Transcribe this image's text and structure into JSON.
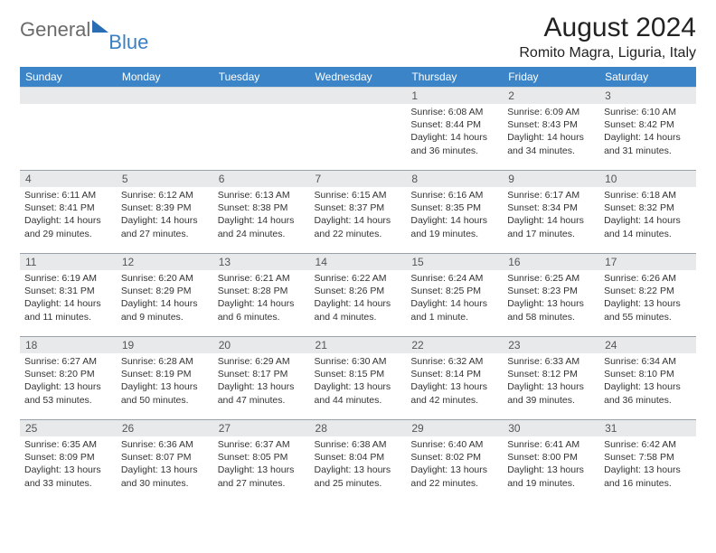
{
  "logo": {
    "text1": "General",
    "text2": "Blue"
  },
  "title": "August 2024",
  "location": "Romito Magra, Liguria, Italy",
  "weekdays": [
    "Sunday",
    "Monday",
    "Tuesday",
    "Wednesday",
    "Thursday",
    "Friday",
    "Saturday"
  ],
  "colors": {
    "header_bg": "#3a84c7",
    "header_text": "#ffffff",
    "daynum_bg": "#e8e9eb",
    "border": "#9aa1a8",
    "logo_gray": "#6b6b6b",
    "logo_blue": "#3a7fc4"
  },
  "weeks": [
    [
      null,
      null,
      null,
      null,
      {
        "day": "1",
        "sunrise": "Sunrise: 6:08 AM",
        "sunset": "Sunset: 8:44 PM",
        "daylight": "Daylight: 14 hours and 36 minutes."
      },
      {
        "day": "2",
        "sunrise": "Sunrise: 6:09 AM",
        "sunset": "Sunset: 8:43 PM",
        "daylight": "Daylight: 14 hours and 34 minutes."
      },
      {
        "day": "3",
        "sunrise": "Sunrise: 6:10 AM",
        "sunset": "Sunset: 8:42 PM",
        "daylight": "Daylight: 14 hours and 31 minutes."
      }
    ],
    [
      {
        "day": "4",
        "sunrise": "Sunrise: 6:11 AM",
        "sunset": "Sunset: 8:41 PM",
        "daylight": "Daylight: 14 hours and 29 minutes."
      },
      {
        "day": "5",
        "sunrise": "Sunrise: 6:12 AM",
        "sunset": "Sunset: 8:39 PM",
        "daylight": "Daylight: 14 hours and 27 minutes."
      },
      {
        "day": "6",
        "sunrise": "Sunrise: 6:13 AM",
        "sunset": "Sunset: 8:38 PM",
        "daylight": "Daylight: 14 hours and 24 minutes."
      },
      {
        "day": "7",
        "sunrise": "Sunrise: 6:15 AM",
        "sunset": "Sunset: 8:37 PM",
        "daylight": "Daylight: 14 hours and 22 minutes."
      },
      {
        "day": "8",
        "sunrise": "Sunrise: 6:16 AM",
        "sunset": "Sunset: 8:35 PM",
        "daylight": "Daylight: 14 hours and 19 minutes."
      },
      {
        "day": "9",
        "sunrise": "Sunrise: 6:17 AM",
        "sunset": "Sunset: 8:34 PM",
        "daylight": "Daylight: 14 hours and 17 minutes."
      },
      {
        "day": "10",
        "sunrise": "Sunrise: 6:18 AM",
        "sunset": "Sunset: 8:32 PM",
        "daylight": "Daylight: 14 hours and 14 minutes."
      }
    ],
    [
      {
        "day": "11",
        "sunrise": "Sunrise: 6:19 AM",
        "sunset": "Sunset: 8:31 PM",
        "daylight": "Daylight: 14 hours and 11 minutes."
      },
      {
        "day": "12",
        "sunrise": "Sunrise: 6:20 AM",
        "sunset": "Sunset: 8:29 PM",
        "daylight": "Daylight: 14 hours and 9 minutes."
      },
      {
        "day": "13",
        "sunrise": "Sunrise: 6:21 AM",
        "sunset": "Sunset: 8:28 PM",
        "daylight": "Daylight: 14 hours and 6 minutes."
      },
      {
        "day": "14",
        "sunrise": "Sunrise: 6:22 AM",
        "sunset": "Sunset: 8:26 PM",
        "daylight": "Daylight: 14 hours and 4 minutes."
      },
      {
        "day": "15",
        "sunrise": "Sunrise: 6:24 AM",
        "sunset": "Sunset: 8:25 PM",
        "daylight": "Daylight: 14 hours and 1 minute."
      },
      {
        "day": "16",
        "sunrise": "Sunrise: 6:25 AM",
        "sunset": "Sunset: 8:23 PM",
        "daylight": "Daylight: 13 hours and 58 minutes."
      },
      {
        "day": "17",
        "sunrise": "Sunrise: 6:26 AM",
        "sunset": "Sunset: 8:22 PM",
        "daylight": "Daylight: 13 hours and 55 minutes."
      }
    ],
    [
      {
        "day": "18",
        "sunrise": "Sunrise: 6:27 AM",
        "sunset": "Sunset: 8:20 PM",
        "daylight": "Daylight: 13 hours and 53 minutes."
      },
      {
        "day": "19",
        "sunrise": "Sunrise: 6:28 AM",
        "sunset": "Sunset: 8:19 PM",
        "daylight": "Daylight: 13 hours and 50 minutes."
      },
      {
        "day": "20",
        "sunrise": "Sunrise: 6:29 AM",
        "sunset": "Sunset: 8:17 PM",
        "daylight": "Daylight: 13 hours and 47 minutes."
      },
      {
        "day": "21",
        "sunrise": "Sunrise: 6:30 AM",
        "sunset": "Sunset: 8:15 PM",
        "daylight": "Daylight: 13 hours and 44 minutes."
      },
      {
        "day": "22",
        "sunrise": "Sunrise: 6:32 AM",
        "sunset": "Sunset: 8:14 PM",
        "daylight": "Daylight: 13 hours and 42 minutes."
      },
      {
        "day": "23",
        "sunrise": "Sunrise: 6:33 AM",
        "sunset": "Sunset: 8:12 PM",
        "daylight": "Daylight: 13 hours and 39 minutes."
      },
      {
        "day": "24",
        "sunrise": "Sunrise: 6:34 AM",
        "sunset": "Sunset: 8:10 PM",
        "daylight": "Daylight: 13 hours and 36 minutes."
      }
    ],
    [
      {
        "day": "25",
        "sunrise": "Sunrise: 6:35 AM",
        "sunset": "Sunset: 8:09 PM",
        "daylight": "Daylight: 13 hours and 33 minutes."
      },
      {
        "day": "26",
        "sunrise": "Sunrise: 6:36 AM",
        "sunset": "Sunset: 8:07 PM",
        "daylight": "Daylight: 13 hours and 30 minutes."
      },
      {
        "day": "27",
        "sunrise": "Sunrise: 6:37 AM",
        "sunset": "Sunset: 8:05 PM",
        "daylight": "Daylight: 13 hours and 27 minutes."
      },
      {
        "day": "28",
        "sunrise": "Sunrise: 6:38 AM",
        "sunset": "Sunset: 8:04 PM",
        "daylight": "Daylight: 13 hours and 25 minutes."
      },
      {
        "day": "29",
        "sunrise": "Sunrise: 6:40 AM",
        "sunset": "Sunset: 8:02 PM",
        "daylight": "Daylight: 13 hours and 22 minutes."
      },
      {
        "day": "30",
        "sunrise": "Sunrise: 6:41 AM",
        "sunset": "Sunset: 8:00 PM",
        "daylight": "Daylight: 13 hours and 19 minutes."
      },
      {
        "day": "31",
        "sunrise": "Sunrise: 6:42 AM",
        "sunset": "Sunset: 7:58 PM",
        "daylight": "Daylight: 13 hours and 16 minutes."
      }
    ]
  ]
}
